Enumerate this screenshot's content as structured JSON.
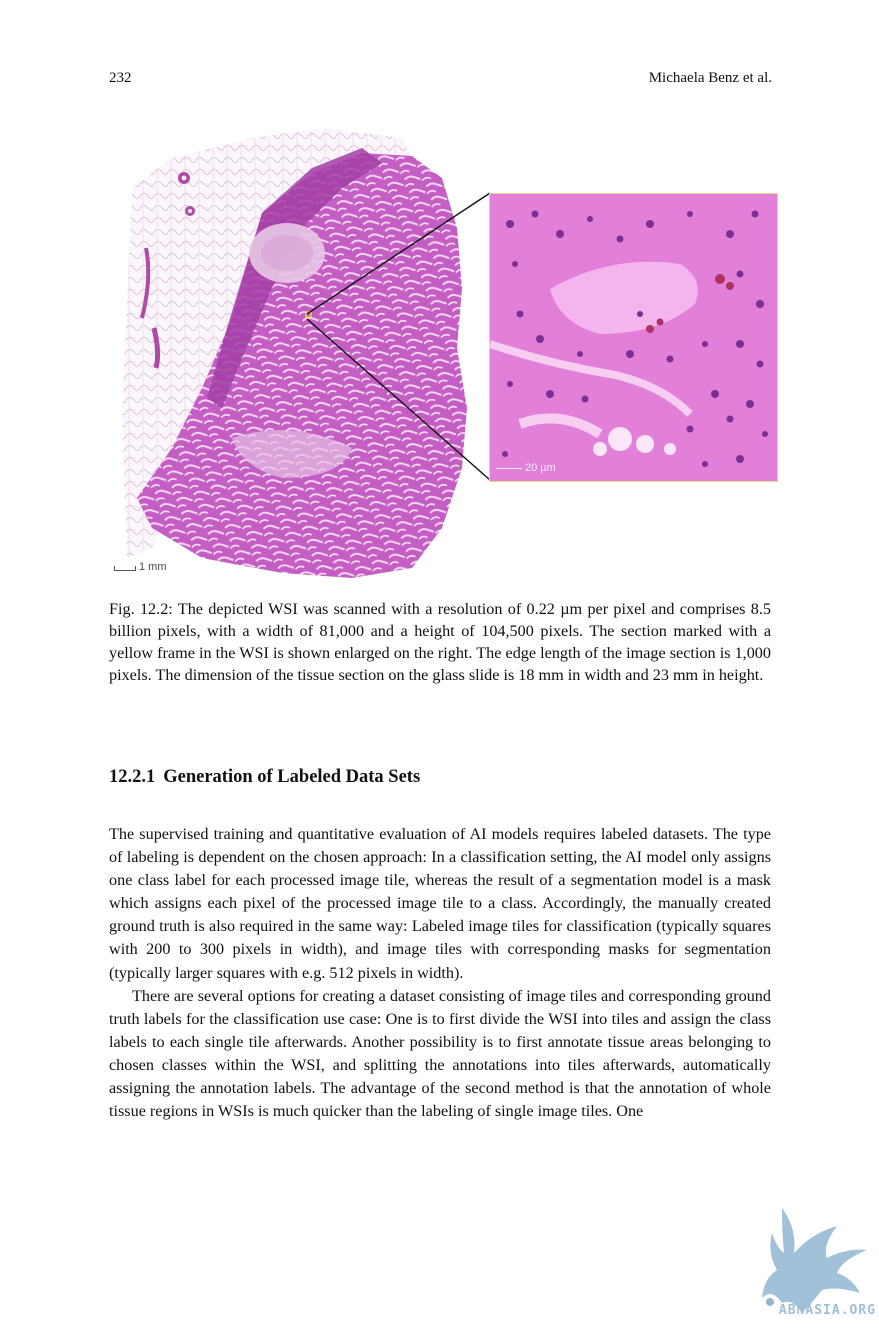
{
  "header": {
    "page_number": "232",
    "running_author": "Michaela Benz et al."
  },
  "figure": {
    "scale_bar_wsi": "1 mm",
    "scale_bar_enlarged": "20 µm",
    "frame_color": "#e8d44a",
    "stain_colors": {
      "eosin": "#d86fd4",
      "hematoxylin": "#6a2a8a",
      "background": "#ffffff"
    },
    "caption": "Fig. 12.2: The depicted WSI was scanned with a resolution of 0.22 µm per pixel and comprises 8.5 billion pixels, with a width of 81,000 and a height of 104,500 pixels. The section marked with a yellow frame in the WSI is shown enlarged on the right. The edge length of the image section is 1,000 pixels. The dimension of the tissue section on the glass slide is 18 mm in width and 23 mm in height."
  },
  "section": {
    "number": "12.2.1",
    "title": "Generation of Labeled Data Sets"
  },
  "paragraphs": [
    "The supervised training and quantitative evaluation of AI models requires labeled datasets. The type of labeling is dependent on the chosen approach: In a classification setting, the AI model only assigns one class label for each processed image tile, whereas the result of a segmentation model is a mask which assigns each pixel of the processed image tile to a class. Accordingly, the manually created ground truth is also required in the same way: Labeled image tiles for classification (typically squares with 200 to 300 pixels in width), and image tiles with corresponding masks for segmentation (typically larger squares with e.g. 512 pixels in width).",
    "There are several options for creating a dataset consisting of image tiles and corresponding ground truth labels for the classification use case: One is to first divide the WSI into tiles and assign the class labels to each single tile afterwards. Another possibility is to first annotate tissue areas belonging to chosen classes within the WSI, and splitting the annotations into tiles afterwards, automatically assigning the annotation labels. The advantage of the second method is that the annotation of whole tissue regions in WSIs is much quicker than the labeling of single image tiles. One"
  ],
  "watermark": {
    "text": "ABNASIA.ORG",
    "icon": "griffin-logo",
    "color": "#8fb6d0"
  }
}
